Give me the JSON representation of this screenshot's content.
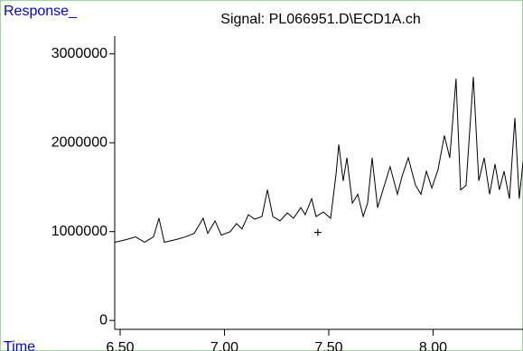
{
  "chart_data": {
    "type": "line",
    "title": "Signal: PL066951.D\\ECD1A.ch",
    "y_label": "Response_",
    "x_label": "Time",
    "x": [
      6.474,
      6.53,
      6.574,
      6.617,
      6.66,
      6.686,
      6.712,
      6.768,
      6.812,
      6.855,
      6.898,
      6.92,
      6.955,
      6.985,
      7.028,
      7.058,
      7.084,
      7.115,
      7.145,
      7.18,
      7.206,
      7.232,
      7.266,
      7.301,
      7.331,
      7.366,
      7.387,
      7.418,
      7.439,
      7.474,
      7.509,
      7.535,
      7.548,
      7.569,
      7.587,
      7.613,
      7.639,
      7.665,
      7.686,
      7.708,
      7.734,
      7.76,
      7.794,
      7.829,
      7.851,
      7.881,
      7.916,
      7.942,
      7.968,
      7.994,
      8.024,
      8.054,
      8.08,
      8.11,
      8.132,
      8.158,
      8.193,
      8.219,
      8.245,
      8.271,
      8.297,
      8.318,
      8.34,
      8.366,
      8.392,
      8.413,
      8.431
    ],
    "series": [
      {
        "color": "#000000",
        "values": [
          880000,
          910000,
          940000,
          880000,
          940000,
          1150000,
          880000,
          910000,
          940000,
          980000,
          1150000,
          980000,
          1120000,
          960000,
          1000000,
          1090000,
          1030000,
          1190000,
          1140000,
          1170000,
          1470000,
          1170000,
          1120000,
          1210000,
          1150000,
          1270000,
          1190000,
          1370000,
          1170000,
          1220000,
          1150000,
          1650000,
          1980000,
          1570000,
          1830000,
          1320000,
          1420000,
          1170000,
          1320000,
          1830000,
          1270000,
          1470000,
          1730000,
          1420000,
          1620000,
          1830000,
          1520000,
          1420000,
          1680000,
          1490000,
          1700000,
          2080000,
          1830000,
          2720000,
          1470000,
          1520000,
          2740000,
          1570000,
          1830000,
          1420000,
          1760000,
          1470000,
          1680000,
          1370000,
          2280000,
          1370000,
          1780000
        ]
      }
    ],
    "xlim": [
      6.474,
      8.431
    ],
    "ylim": [
      -100000,
      3200000
    ],
    "xticks": [
      {
        "value": 6.5,
        "label": "6.50"
      },
      {
        "value": 7.0,
        "label": "7.00"
      },
      {
        "value": 7.5,
        "label": "7.50"
      },
      {
        "value": 8.0,
        "label": "8.00"
      }
    ],
    "yticks": [
      0,
      1000000,
      2000000,
      3000000
    ],
    "annotations": [
      {
        "text": "+",
        "x": 7.448,
        "y": 980000
      }
    ]
  }
}
